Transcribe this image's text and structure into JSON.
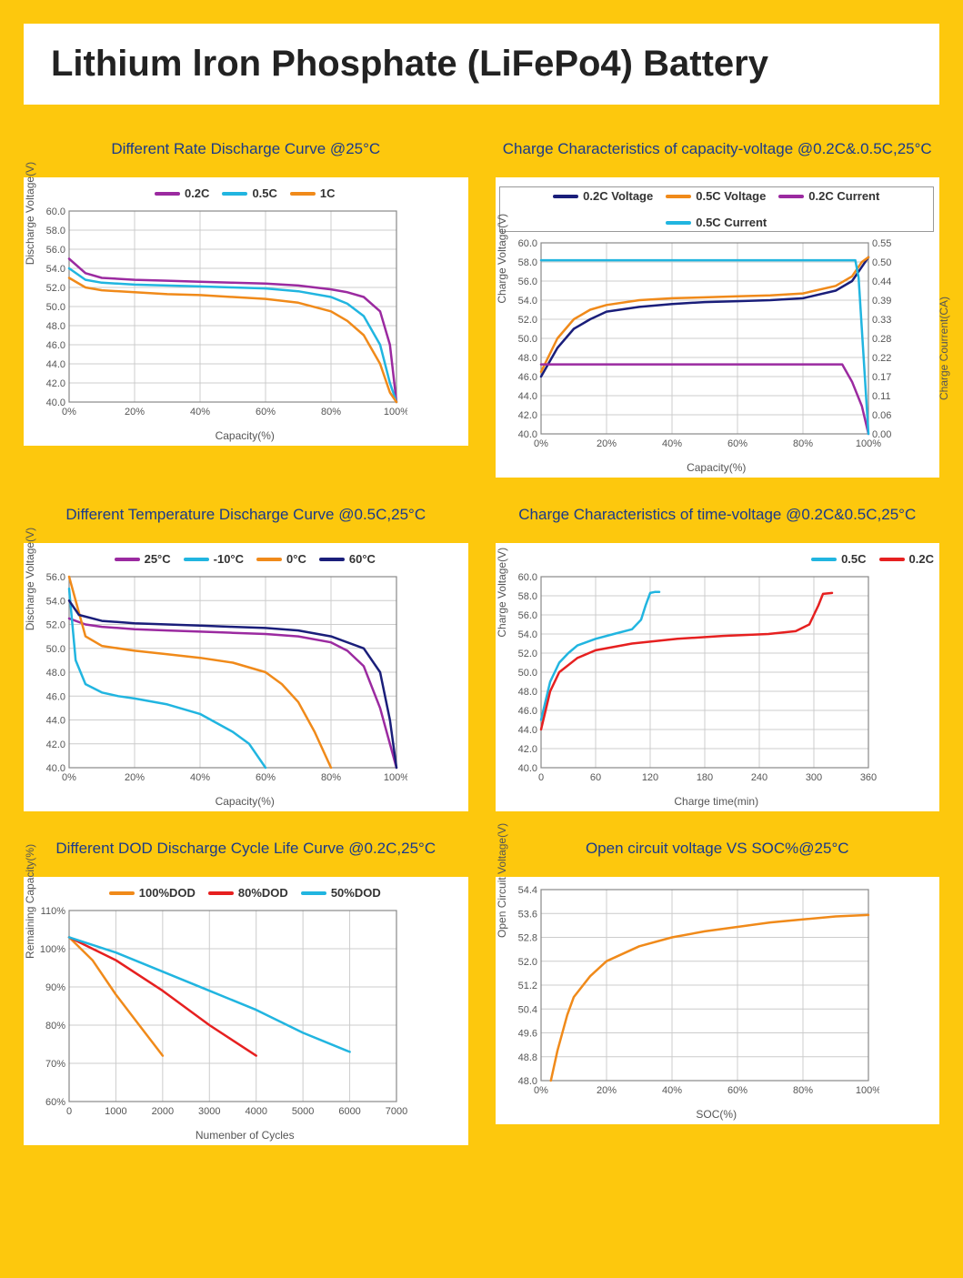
{
  "page": {
    "title": "Lithium lron Phosphate (LiFePo4) Battery",
    "bg_color": "#fdc80d",
    "panel_bg": "#ffffff",
    "title_color": "#222222",
    "chart_title_color": "#1a3a8a",
    "grid_color": "#cccccc",
    "axis_color": "#555555",
    "tick_fontsize": 11,
    "title_fontsize": 40,
    "chart_title_fontsize": 17
  },
  "charts": [
    {
      "id": "c1",
      "title": "Different Rate Discharge Curve @25°C",
      "xlabel": "Capacity(%)",
      "ylabel": "Discharge Voltage(V)",
      "xlim": [
        0,
        100
      ],
      "xtick_step": 20,
      "xtick_suffix": "%",
      "ylim": [
        40,
        60
      ],
      "ytick_step": 2,
      "ytick_decimals": 1,
      "legend_pos": "top",
      "series": [
        {
          "label": "0.2C",
          "color": "#9b2aa0",
          "width": 2.5,
          "x": [
            0,
            5,
            10,
            20,
            30,
            40,
            50,
            60,
            70,
            80,
            85,
            90,
            95,
            98,
            100
          ],
          "y": [
            55,
            53.5,
            53,
            52.8,
            52.7,
            52.6,
            52.5,
            52.4,
            52.2,
            51.8,
            51.5,
            51,
            49.5,
            46,
            40
          ]
        },
        {
          "label": "0.5C",
          "color": "#21b5e0",
          "width": 2.5,
          "x": [
            0,
            5,
            10,
            20,
            30,
            40,
            50,
            60,
            70,
            80,
            85,
            90,
            95,
            98,
            100
          ],
          "y": [
            54,
            52.8,
            52.5,
            52.3,
            52.2,
            52.1,
            52,
            51.9,
            51.6,
            51,
            50.3,
            49,
            46,
            42,
            40
          ]
        },
        {
          "label": "1C",
          "color": "#f08a1a",
          "width": 2.5,
          "x": [
            0,
            5,
            10,
            20,
            30,
            40,
            50,
            60,
            70,
            80,
            85,
            90,
            95,
            98,
            100
          ],
          "y": [
            53,
            52,
            51.7,
            51.5,
            51.3,
            51.2,
            51,
            50.8,
            50.4,
            49.5,
            48.5,
            47,
            44,
            41,
            40
          ]
        }
      ]
    },
    {
      "id": "c2",
      "title": "Charge Characteristics of capacity-voltage @0.2C&.0.5C,25°C",
      "xlabel": "Capacity(%)",
      "ylabel": "Charge Voltage(V)",
      "ylabel2": "Charge Courrent(CA)",
      "xlim": [
        0,
        100
      ],
      "xtick_step": 20,
      "xtick_suffix": "%",
      "ylim": [
        40,
        60
      ],
      "ytick_step": 2,
      "ytick_decimals": 1,
      "y2_ticks": [
        0.0,
        0.06,
        0.11,
        0.17,
        0.22,
        0.28,
        0.33,
        0.39,
        0.44,
        0.5,
        0.55
      ],
      "legend_pos": "top",
      "legend_boxed": true,
      "series": [
        {
          "label": "0.2C Voltage",
          "color": "#1a1e7a",
          "width": 2.5,
          "x": [
            0,
            5,
            10,
            15,
            20,
            30,
            40,
            50,
            60,
            70,
            80,
            90,
            95,
            98,
            100
          ],
          "y": [
            46,
            49,
            51,
            52,
            52.8,
            53.3,
            53.6,
            53.8,
            53.9,
            54,
            54.2,
            55,
            56,
            57.5,
            58.5
          ]
        },
        {
          "label": "0.5C Voltage",
          "color": "#f08a1a",
          "width": 2.5,
          "x": [
            0,
            5,
            10,
            15,
            20,
            30,
            40,
            50,
            60,
            70,
            80,
            90,
            95,
            98,
            100
          ],
          "y": [
            46.5,
            50,
            52,
            53,
            53.5,
            54,
            54.2,
            54.3,
            54.4,
            54.5,
            54.7,
            55.5,
            56.5,
            58,
            58.5
          ]
        },
        {
          "label": "0.2C Current",
          "color": "#9b2aa0",
          "width": 2.5,
          "axis": "y2",
          "x": [
            0,
            90,
            92,
            95,
            98,
            100
          ],
          "y": [
            0.2,
            0.2,
            0.2,
            0.15,
            0.08,
            0.0
          ]
        },
        {
          "label": "0.5C Current",
          "color": "#21b5e0",
          "width": 2.5,
          "axis": "y2",
          "x": [
            0,
            95,
            96,
            97,
            98,
            99,
            100
          ],
          "y": [
            0.5,
            0.5,
            0.5,
            0.45,
            0.3,
            0.15,
            0.0
          ]
        }
      ]
    },
    {
      "id": "c3",
      "title": "Different Temperature Discharge Curve @0.5C,25°C",
      "xlabel": "Capacity(%)",
      "ylabel": "Discharge Voltage(V)",
      "xlim": [
        0,
        100
      ],
      "xtick_step": 20,
      "xtick_suffix": "%",
      "ylim": [
        40,
        56
      ],
      "ytick_step": 2,
      "ytick_decimals": 1,
      "legend_pos": "top",
      "series": [
        {
          "label": "25°C",
          "color": "#9b2aa0",
          "width": 2.5,
          "x": [
            0,
            5,
            10,
            20,
            30,
            40,
            50,
            60,
            70,
            80,
            85,
            90,
            95,
            100
          ],
          "y": [
            52.5,
            52,
            51.8,
            51.6,
            51.5,
            51.4,
            51.3,
            51.2,
            51,
            50.5,
            49.8,
            48.5,
            45,
            40
          ]
        },
        {
          "label": "-10°C",
          "color": "#21b5e0",
          "width": 2.5,
          "x": [
            0,
            2,
            5,
            10,
            15,
            20,
            30,
            40,
            50,
            55,
            60
          ],
          "y": [
            55,
            49,
            47,
            46.3,
            46,
            45.8,
            45.3,
            44.5,
            43,
            42,
            40
          ]
        },
        {
          "label": "0°C",
          "color": "#f08a1a",
          "width": 2.5,
          "x": [
            0,
            5,
            10,
            20,
            30,
            40,
            50,
            60,
            65,
            70,
            75,
            80
          ],
          "y": [
            56,
            51,
            50.2,
            49.8,
            49.5,
            49.2,
            48.8,
            48,
            47,
            45.5,
            43,
            40
          ]
        },
        {
          "label": "60°C",
          "color": "#1a1e7a",
          "width": 2.5,
          "x": [
            0,
            3,
            10,
            20,
            30,
            40,
            50,
            60,
            70,
            80,
            90,
            95,
            98,
            100
          ],
          "y": [
            54,
            52.8,
            52.3,
            52.1,
            52,
            51.9,
            51.8,
            51.7,
            51.5,
            51,
            50,
            48,
            44,
            40
          ]
        }
      ]
    },
    {
      "id": "c4",
      "title": "Charge Characteristics of time-voltage @0.2C&0.5C,25°C",
      "xlabel": "Charge time(min)",
      "ylabel": "Charge Voltage(V)",
      "xlim": [
        0,
        360
      ],
      "xtick_step": 60,
      "xtick_suffix": "",
      "ylim": [
        40,
        60
      ],
      "ytick_step": 2,
      "ytick_decimals": 1,
      "legend_pos": "top-right",
      "series": [
        {
          "label": "0.5C",
          "color": "#21b5e0",
          "width": 2.5,
          "x": [
            0,
            10,
            20,
            30,
            40,
            60,
            80,
            100,
            110,
            115,
            120,
            125,
            130
          ],
          "y": [
            45,
            49,
            51,
            52,
            52.8,
            53.5,
            54,
            54.5,
            55.5,
            57,
            58.3,
            58.4,
            58.4
          ]
        },
        {
          "label": "0.2C",
          "color": "#e62020",
          "width": 2.5,
          "x": [
            0,
            10,
            20,
            40,
            60,
            100,
            150,
            200,
            250,
            280,
            295,
            305,
            310,
            320
          ],
          "y": [
            44,
            48,
            50,
            51.5,
            52.3,
            53,
            53.5,
            53.8,
            54,
            54.3,
            55,
            57,
            58.2,
            58.3
          ]
        }
      ]
    },
    {
      "id": "c5",
      "title": "Different DOD Discharge Cycle Life Curve @0.2C,25°C",
      "xlabel": "Numenber of Cycles",
      "ylabel": "Remaining Capacity(%)",
      "xlim": [
        0,
        7000
      ],
      "xtick_step": 1000,
      "xtick_suffix": "",
      "ylim": [
        60,
        110
      ],
      "ytick_step": 10,
      "ytick_suffix": "%",
      "legend_pos": "top",
      "series": [
        {
          "label": "100%DOD",
          "color": "#f08a1a",
          "width": 2.5,
          "x": [
            0,
            500,
            1000,
            1500,
            2000
          ],
          "y": [
            103,
            97,
            88,
            80,
            72
          ]
        },
        {
          "label": "80%DOD",
          "color": "#e62020",
          "width": 2.5,
          "x": [
            0,
            1000,
            2000,
            3000,
            4000
          ],
          "y": [
            103,
            97,
            89,
            80,
            72
          ]
        },
        {
          "label": "50%DOD",
          "color": "#21b5e0",
          "width": 2.5,
          "x": [
            0,
            1000,
            2000,
            3000,
            4000,
            5000,
            6000
          ],
          "y": [
            103,
            99,
            94,
            89,
            84,
            78,
            73
          ]
        }
      ]
    },
    {
      "id": "c6",
      "title": "Open circuit voltage VS SOC%@25°C",
      "xlabel": "SOC(%)",
      "ylabel": "Open Circuit Voltage(V)",
      "xlim": [
        0,
        100
      ],
      "xtick_step": 20,
      "xtick_suffix": "%",
      "ylim": [
        48,
        54.4
      ],
      "ytick_step": 0.8,
      "ytick_decimals": 1,
      "legend_pos": "none",
      "series": [
        {
          "label": "OCV",
          "color": "#f08a1a",
          "width": 2.5,
          "x": [
            3,
            5,
            8,
            10,
            15,
            20,
            30,
            40,
            50,
            60,
            70,
            80,
            90,
            100
          ],
          "y": [
            48,
            49,
            50.2,
            50.8,
            51.5,
            52,
            52.5,
            52.8,
            53,
            53.15,
            53.3,
            53.4,
            53.5,
            53.55
          ]
        }
      ]
    }
  ]
}
